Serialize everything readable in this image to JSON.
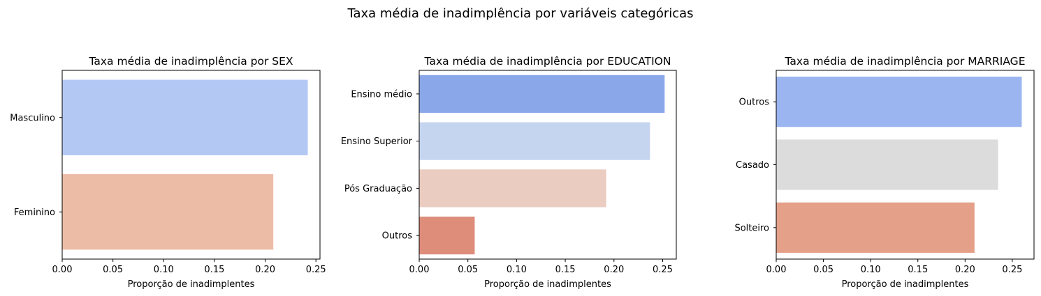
{
  "suptitle": "Taxa média de inadimplência por variáveis categóricas",
  "chart_data": [
    {
      "type": "bar",
      "orientation": "horizontal",
      "title": "Taxa média de inadimplência por SEX",
      "xlabel": "Proporção de inadimplentes",
      "ylabel": "",
      "categories": [
        "Masculino",
        "Feminino"
      ],
      "values": [
        0.242,
        0.208
      ],
      "colors": [
        "#b4c8f4",
        "#edbca7"
      ],
      "xlim": [
        0,
        0.254
      ],
      "xticks": [
        0,
        0.05,
        0.1,
        0.15,
        0.2,
        0.25
      ],
      "xtick_labels": [
        "0.00",
        "0.05",
        "0.10",
        "0.15",
        "0.20",
        "0.25"
      ],
      "grid": false
    },
    {
      "type": "bar",
      "orientation": "horizontal",
      "title": "Taxa média de inadimplência por EDUCATION",
      "xlabel": "Proporção de inadimplentes",
      "ylabel": "",
      "categories": [
        "Ensino médio",
        "Ensino Superior",
        "Pós Graduação",
        "Outros"
      ],
      "values": [
        0.252,
        0.237,
        0.192,
        0.057
      ],
      "colors": [
        "#8aa7e9",
        "#c6d5ef",
        "#eaccc0",
        "#de8d7a"
      ],
      "xlim": [
        0,
        0.264
      ],
      "xticks": [
        0,
        0.05,
        0.1,
        0.15,
        0.2,
        0.25
      ],
      "xtick_labels": [
        "0.00",
        "0.05",
        "0.10",
        "0.15",
        "0.20",
        "0.25"
      ],
      "grid": false
    },
    {
      "type": "bar",
      "orientation": "horizontal",
      "title": "Taxa média de inadimplência por MARRIAGE",
      "xlabel": "Proporção de inadimplentes",
      "ylabel": "",
      "categories": [
        "Outros",
        "Casado",
        "Solteiro"
      ],
      "values": [
        0.26,
        0.235,
        0.21
      ],
      "colors": [
        "#9bb5f0",
        "#dcdcdc",
        "#e4a088"
      ],
      "xlim": [
        0,
        0.273
      ],
      "xticks": [
        0,
        0.05,
        0.1,
        0.15,
        0.2,
        0.25
      ],
      "xtick_labels": [
        "0.00",
        "0.05",
        "0.10",
        "0.15",
        "0.20",
        "0.25"
      ],
      "grid": false
    }
  ]
}
